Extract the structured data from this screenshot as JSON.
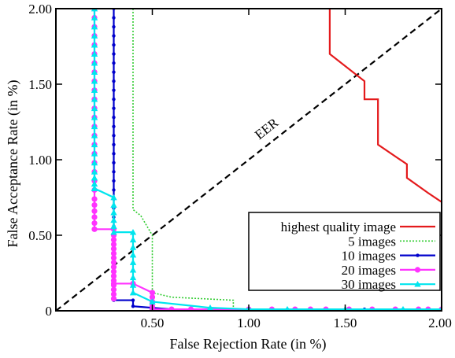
{
  "chart_data": {
    "type": "line",
    "title": "",
    "xlabel": "False Rejection Rate (in %)",
    "ylabel": "False Acceptance Rate (in %)",
    "xlim": [
      0,
      2.0
    ],
    "ylim": [
      0,
      2.0
    ],
    "x_ticks": [
      {
        "value": 0.5,
        "label": "0.50"
      },
      {
        "value": 1.0,
        "label": "1.00"
      },
      {
        "value": 1.5,
        "label": "1.50"
      },
      {
        "value": 2.0,
        "label": "2.00"
      }
    ],
    "y_ticks": [
      {
        "value": 0,
        "label": "0"
      },
      {
        "value": 0.5,
        "label": "0.50"
      },
      {
        "value": 1.0,
        "label": "1.00"
      },
      {
        "value": 1.5,
        "label": "1.50"
      },
      {
        "value": 2.0,
        "label": "2.00"
      }
    ],
    "grid": false,
    "legend_position": "bottom-right",
    "annotations": [
      {
        "text": "EER",
        "x": 1.07,
        "y": 1.17
      }
    ],
    "reference_line": {
      "name": "EER",
      "x": [
        0,
        2.0
      ],
      "y": [
        0,
        2.0
      ],
      "color": "#000000",
      "style": "dashed"
    },
    "series": [
      {
        "name": "highest quality image",
        "color": "#e41a1c",
        "style": "solid",
        "marker": "none",
        "x": [
          1.42,
          1.42,
          1.6,
          1.6,
          1.67,
          1.67,
          1.82,
          1.82,
          1.93,
          2.0
        ],
        "y": [
          2.0,
          1.7,
          1.52,
          1.4,
          1.4,
          1.1,
          0.97,
          0.88,
          0.78,
          0.72
        ]
      },
      {
        "name": "5 images",
        "color": "#33cc33",
        "style": "dotted",
        "marker": "none",
        "x": [
          0.4,
          0.4,
          0.44,
          0.5,
          0.5,
          0.6,
          0.92,
          0.92,
          2.0
        ],
        "y": [
          2.0,
          0.67,
          0.63,
          0.5,
          0.12,
          0.09,
          0.07,
          0.01,
          0.01
        ]
      },
      {
        "name": "10 images",
        "color": "#0000cc",
        "style": "solid",
        "marker": "dot",
        "x": [
          0.3,
          0.3,
          0.3,
          0.3,
          0.3,
          0.3,
          0.3,
          0.3,
          0.3,
          0.3,
          0.3,
          0.3,
          0.3,
          0.3,
          0.3,
          0.3,
          0.3,
          0.3,
          0.3,
          0.3,
          0.3,
          0.3,
          0.3,
          0.3,
          0.3,
          0.3,
          0.3,
          0.3,
          0.3,
          0.3,
          0.3,
          0.3,
          0.4,
          0.4,
          0.5,
          0.6,
          0.8,
          1.0,
          1.2,
          1.4,
          1.6,
          1.8,
          2.0
        ],
        "y": [
          2.0,
          1.94,
          1.88,
          1.82,
          1.76,
          1.7,
          1.64,
          1.58,
          1.52,
          1.46,
          1.4,
          1.34,
          1.28,
          1.22,
          1.16,
          1.1,
          1.04,
          0.98,
          0.92,
          0.86,
          0.8,
          0.74,
          0.68,
          0.62,
          0.56,
          0.5,
          0.44,
          0.38,
          0.32,
          0.26,
          0.16,
          0.07,
          0.07,
          0.03,
          0.02,
          0.01,
          0.01,
          0.01,
          0.01,
          0.01,
          0.01,
          0.01,
          0.01
        ]
      },
      {
        "name": "20 images",
        "color": "#ff33ff",
        "style": "solid",
        "marker": "circle",
        "x": [
          0.2,
          0.2,
          0.2,
          0.2,
          0.2,
          0.2,
          0.2,
          0.2,
          0.2,
          0.2,
          0.2,
          0.2,
          0.2,
          0.2,
          0.2,
          0.2,
          0.2,
          0.2,
          0.2,
          0.2,
          0.2,
          0.2,
          0.2,
          0.2,
          0.2,
          0.2,
          0.2,
          0.3,
          0.3,
          0.3,
          0.3,
          0.3,
          0.3,
          0.3,
          0.3,
          0.3,
          0.3,
          0.3,
          0.3,
          0.3,
          0.3,
          0.3,
          0.3,
          0.3,
          0.4,
          0.5,
          0.5,
          0.5,
          0.5,
          0.5,
          0.6,
          0.7,
          0.8,
          1.0,
          1.12,
          1.24,
          1.32,
          1.4,
          1.52,
          1.64,
          1.76,
          1.88,
          1.93,
          2.0
        ],
        "y": [
          2.0,
          1.94,
          1.88,
          1.82,
          1.76,
          1.7,
          1.64,
          1.58,
          1.52,
          1.46,
          1.4,
          1.34,
          1.28,
          1.22,
          1.16,
          1.1,
          1.04,
          0.98,
          0.92,
          0.86,
          0.8,
          0.74,
          0.7,
          0.66,
          0.62,
          0.58,
          0.54,
          0.54,
          0.5,
          0.47,
          0.44,
          0.41,
          0.38,
          0.35,
          0.32,
          0.29,
          0.26,
          0.23,
          0.2,
          0.17,
          0.14,
          0.11,
          0.08,
          0.18,
          0.18,
          0.12,
          0.09,
          0.06,
          0.03,
          0.01,
          0.01,
          0.01,
          0.01,
          0.01,
          0.01,
          0.01,
          0.01,
          0.01,
          0.01,
          0.01,
          0.01,
          0.01,
          0.01,
          0.01
        ]
      },
      {
        "name": "30 images",
        "color": "#00e5ee",
        "style": "solid",
        "marker": "triangle",
        "x": [
          0.2,
          0.2,
          0.2,
          0.2,
          0.2,
          0.2,
          0.2,
          0.2,
          0.2,
          0.2,
          0.2,
          0.2,
          0.2,
          0.2,
          0.2,
          0.2,
          0.2,
          0.2,
          0.2,
          0.2,
          0.2,
          0.2,
          0.2,
          0.3,
          0.3,
          0.3,
          0.3,
          0.3,
          0.3,
          0.4,
          0.4,
          0.4,
          0.4,
          0.4,
          0.4,
          0.4,
          0.4,
          0.4,
          0.5,
          0.8,
          1.0,
          1.2,
          1.5,
          1.8,
          2.0
        ],
        "y": [
          2.0,
          1.94,
          1.88,
          1.82,
          1.76,
          1.7,
          1.64,
          1.58,
          1.52,
          1.46,
          1.4,
          1.34,
          1.28,
          1.22,
          1.16,
          1.1,
          1.04,
          0.98,
          0.92,
          0.88,
          0.84,
          0.81,
          0.81,
          0.75,
          0.7,
          0.65,
          0.6,
          0.56,
          0.52,
          0.52,
          0.47,
          0.42,
          0.37,
          0.32,
          0.27,
          0.22,
          0.17,
          0.12,
          0.06,
          0.02,
          0.01,
          0.01,
          0.01,
          0.01,
          0.01
        ]
      }
    ]
  }
}
